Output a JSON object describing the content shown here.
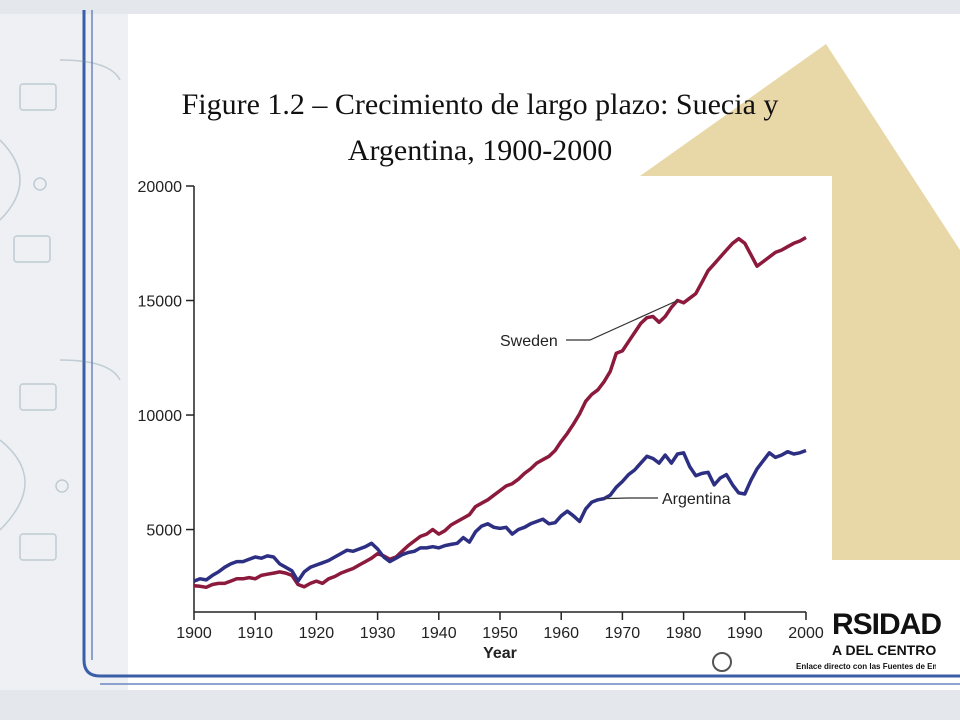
{
  "slide": {
    "title_line1": "Figure 1.2 – Crecimiento de largo plazo: Suecia y",
    "title_line2": "Argentina, 1900-2000",
    "colors": {
      "frame_blue": "#3b5ea8",
      "triangle": "#e8d8a8",
      "background_band": "#d9dde3",
      "sweden": "#8b1a3c",
      "argentina": "#2d2f82"
    }
  },
  "logo": {
    "name": "RSIDAD",
    "subtitle": "A DEL CENTRO",
    "tagline": "Enlace directo con las Fuentes de Empleo",
    "icon": "crest-icon"
  },
  "chart_data": {
    "type": "line",
    "title": "",
    "xlabel": "Year",
    "ylabel": "",
    "xlim": [
      1900,
      2000
    ],
    "ylim": [
      1400,
      20000
    ],
    "x_ticks": [
      1900,
      1910,
      1920,
      1930,
      1940,
      1950,
      1960,
      1970,
      1980,
      1990,
      2000
    ],
    "y_ticks": [
      5000,
      10000,
      15000,
      20000
    ],
    "grid": false,
    "legend": "inline-annotations",
    "x": [
      1900,
      1901,
      1902,
      1903,
      1904,
      1905,
      1906,
      1907,
      1908,
      1909,
      1910,
      1911,
      1912,
      1913,
      1914,
      1915,
      1916,
      1917,
      1918,
      1919,
      1920,
      1921,
      1922,
      1923,
      1924,
      1925,
      1926,
      1927,
      1928,
      1929,
      1930,
      1931,
      1932,
      1933,
      1934,
      1935,
      1936,
      1937,
      1938,
      1939,
      1940,
      1941,
      1942,
      1943,
      1944,
      1945,
      1946,
      1947,
      1948,
      1949,
      1950,
      1951,
      1952,
      1953,
      1954,
      1955,
      1956,
      1957,
      1958,
      1959,
      1960,
      1961,
      1962,
      1963,
      1964,
      1965,
      1966,
      1967,
      1968,
      1969,
      1970,
      1971,
      1972,
      1973,
      1974,
      1975,
      1976,
      1977,
      1978,
      1979,
      1980,
      1981,
      1982,
      1983,
      1984,
      1985,
      1986,
      1987,
      1988,
      1989,
      1990,
      1991,
      1992,
      1993,
      1994,
      1995,
      1996,
      1997,
      1998,
      1999,
      2000
    ],
    "series": [
      {
        "name": "Sweden",
        "color": "#8b1a3c",
        "values": [
          2550,
          2520,
          2480,
          2600,
          2650,
          2650,
          2750,
          2850,
          2850,
          2900,
          2850,
          3000,
          3050,
          3100,
          3150,
          3100,
          3000,
          2600,
          2500,
          2650,
          2750,
          2650,
          2850,
          2950,
          3100,
          3200,
          3300,
          3450,
          3600,
          3750,
          3950,
          3850,
          3700,
          3800,
          4050,
          4300,
          4500,
          4700,
          4800,
          5000,
          4800,
          4950,
          5200,
          5350,
          5500,
          5650,
          6000,
          6150,
          6300,
          6500,
          6700,
          6900,
          7000,
          7200,
          7450,
          7650,
          7900,
          8050,
          8200,
          8450,
          8850,
          9200,
          9600,
          10050,
          10600,
          10900,
          11100,
          11450,
          11900,
          12700,
          12800,
          13200,
          13600,
          14000,
          14250,
          14300,
          14050,
          14300,
          14700,
          15000,
          14900,
          15100,
          15300,
          15800,
          16300,
          16600,
          16900,
          17200,
          17500,
          17700,
          17500,
          17000,
          16500,
          16700,
          16900,
          17100,
          17200,
          17350,
          17500,
          17600,
          17750
        ]
      },
      {
        "name": "Argentina",
        "color": "#2d2f82",
        "values": [
          2750,
          2850,
          2800,
          3000,
          3150,
          3350,
          3500,
          3600,
          3600,
          3700,
          3800,
          3750,
          3850,
          3800,
          3500,
          3350,
          3200,
          2750,
          3150,
          3350,
          3450,
          3550,
          3650,
          3800,
          3950,
          4100,
          4050,
          4150,
          4250,
          4400,
          4150,
          3800,
          3600,
          3750,
          3900,
          4000,
          4050,
          4200,
          4200,
          4250,
          4200,
          4300,
          4350,
          4400,
          4650,
          4450,
          4900,
          5150,
          5250,
          5100,
          5050,
          5100,
          4800,
          5000,
          5100,
          5250,
          5350,
          5450,
          5250,
          5300,
          5600,
          5800,
          5600,
          5350,
          5900,
          6200,
          6300,
          6350,
          6500,
          6850,
          7100,
          7400,
          7600,
          7900,
          8200,
          8100,
          7900,
          8250,
          7900,
          8300,
          8350,
          7750,
          7350,
          7450,
          7500,
          6950,
          7250,
          7400,
          6950,
          6600,
          6550,
          7150,
          7650,
          8000,
          8350,
          8150,
          8250,
          8400,
          8300,
          8350,
          8450
        ]
      }
    ],
    "annotations": [
      {
        "text": "Sweden",
        "series": "Sweden",
        "point_year": 1979
      },
      {
        "text": "Argentina",
        "series": "Argentina",
        "point_year": 1967
      }
    ]
  }
}
